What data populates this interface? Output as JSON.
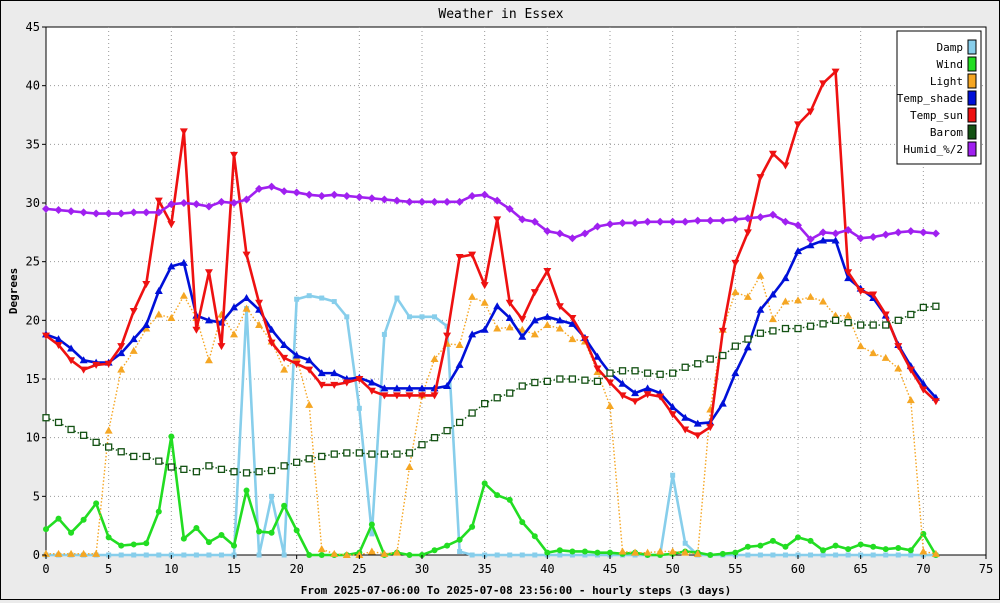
{
  "chart_data": {
    "type": "line",
    "title": "Weather in Essex",
    "xlabel": "From 2025-07-06:00 To 2025-07-08 23:56:00 - hourly steps (3 days)",
    "ylabel": "Degrees",
    "xlim": [
      0,
      75
    ],
    "ylim": [
      0,
      45
    ],
    "xticks": [
      0,
      5,
      10,
      15,
      20,
      25,
      30,
      35,
      40,
      45,
      50,
      55,
      60,
      65,
      70,
      75
    ],
    "yticks": [
      0,
      5,
      10,
      15,
      20,
      25,
      30,
      35,
      40,
      45
    ],
    "grid": true,
    "legend_position": "top-right",
    "x": [
      0,
      1,
      2,
      3,
      4,
      5,
      6,
      7,
      8,
      9,
      10,
      11,
      12,
      13,
      14,
      15,
      16,
      17,
      18,
      19,
      20,
      21,
      22,
      23,
      24,
      25,
      26,
      27,
      28,
      29,
      30,
      31,
      32,
      33,
      34,
      35,
      36,
      37,
      38,
      39,
      40,
      41,
      42,
      43,
      44,
      45,
      46,
      47,
      48,
      49,
      50,
      51,
      52,
      53,
      54,
      55,
      56,
      57,
      58,
      59,
      60,
      61,
      62,
      63,
      64,
      65,
      66,
      67,
      68,
      69,
      70,
      71
    ],
    "series": [
      {
        "name": "Damp",
        "color": "#87ceeb",
        "marker": "square",
        "line": "solid",
        "values": [
          0,
          0,
          0,
          0,
          0,
          0,
          0,
          0,
          0,
          0,
          0,
          0,
          0,
          0,
          0,
          0,
          21,
          0,
          5,
          0,
          21.8,
          22.1,
          21.9,
          21.6,
          20.3,
          12.5,
          1.8,
          18.8,
          21.9,
          20.3,
          20.3,
          20.3,
          19.5,
          0.3,
          0,
          0,
          0,
          0,
          0,
          0,
          0,
          0,
          0,
          0,
          0,
          0,
          0,
          0,
          0,
          0,
          6.8,
          1,
          0,
          0,
          0,
          0,
          0,
          0,
          0,
          0,
          0,
          0,
          0,
          0,
          0,
          0,
          0,
          0,
          0,
          0,
          0,
          0
        ]
      },
      {
        "name": "Wind",
        "color": "#22dd22",
        "marker": "circle",
        "line": "solid",
        "values": [
          2.2,
          3.1,
          1.9,
          3,
          4.4,
          1.5,
          0.8,
          0.9,
          1,
          3.7,
          10.1,
          1.4,
          2.3,
          1.1,
          1.7,
          0.8,
          5.5,
          2,
          1.9,
          4.2,
          2.1,
          0,
          0,
          0,
          0,
          0.2,
          2.6,
          0,
          0.2,
          0,
          0,
          0.4,
          0.8,
          1.3,
          2.4,
          6.1,
          5.1,
          4.7,
          2.8,
          1.6,
          0.2,
          0.4,
          0.3,
          0.3,
          0.2,
          0.2,
          0.1,
          0.2,
          0,
          0,
          0.1,
          0.3,
          0.2,
          0,
          0.1,
          0.2,
          0.7,
          0.8,
          1.2,
          0.7,
          1.5,
          1.2,
          0.4,
          0.8,
          0.5,
          0.9,
          0.7,
          0.5,
          0.6,
          0.4,
          1.8,
          0
        ]
      },
      {
        "name": "Light",
        "color": "#f5a623",
        "marker": "triangle",
        "line": "dotted",
        "values": [
          0.1,
          0.1,
          0.1,
          0.1,
          0.1,
          10.6,
          15.8,
          17.4,
          19.3,
          20.5,
          20.2,
          22.1,
          20.2,
          16.6,
          20.5,
          18.8,
          21.0,
          19.6,
          18.2,
          15.8,
          16.8,
          12.8,
          0.5,
          0.1,
          0,
          0,
          0.3,
          0.1,
          0.2,
          7.5,
          13.6,
          16.7,
          18,
          17.9,
          22,
          21.5,
          19.3,
          19.4,
          19.2,
          18.8,
          19.6,
          19.3,
          18.4,
          18.2,
          15.6,
          12.7,
          0.3,
          0.2,
          0.2,
          0.3,
          0.3,
          0.2,
          0.1,
          12.4,
          19.2,
          22.4,
          22,
          23.8,
          20.1,
          21.6,
          21.7,
          22,
          21.6,
          20.4,
          20.4,
          17.8,
          17.2,
          16.8,
          15.9,
          13.2,
          0.3,
          0.1
        ]
      },
      {
        "name": "Temp_shade",
        "color": "#0010d8",
        "marker": "triangle",
        "line": "solid",
        "values": [
          18.8,
          18.4,
          17.6,
          16.6,
          16.4,
          16.4,
          17.2,
          18.4,
          19.6,
          22.5,
          24.6,
          24.9,
          20.4,
          20.0,
          19.8,
          21.1,
          21.9,
          20.9,
          19.2,
          17.9,
          17.0,
          16.6,
          15.5,
          15.5,
          15.0,
          15.1,
          14.7,
          14.2,
          14.2,
          14.2,
          14.2,
          14.2,
          14.4,
          16.2,
          18.8,
          19.2,
          21.2,
          20.2,
          18.6,
          20.0,
          20.3,
          20.0,
          19.7,
          18.5,
          16.9,
          15.5,
          14.6,
          13.8,
          14.2,
          13.8,
          12.6,
          11.7,
          11.2,
          11.3,
          12.9,
          15.5,
          17.7,
          20.9,
          22.2,
          23.6,
          25.9,
          26.4,
          26.8,
          26.8,
          23.6,
          22.7,
          21.9,
          20.4,
          17.9,
          16.1,
          14.6,
          13.4
        ]
      },
      {
        "name": "Temp_sun",
        "color": "#ee1111",
        "marker": "triangle-down",
        "line": "solid",
        "values": [
          18.7,
          17.9,
          16.6,
          15.8,
          16.2,
          16.3,
          17.8,
          20.8,
          23.1,
          30.2,
          28.2,
          36.1,
          19.2,
          24.1,
          17.8,
          34.1,
          25.6,
          21.5,
          18.1,
          16.8,
          16.3,
          15.8,
          14.5,
          14.5,
          14.7,
          15.0,
          14.0,
          13.6,
          13.6,
          13.6,
          13.6,
          13.6,
          18.7,
          25.4,
          25.6,
          23.0,
          28.6,
          21.5,
          20.1,
          22.4,
          24.2,
          21.2,
          20.2,
          18.4,
          15.9,
          14.7,
          13.6,
          13.1,
          13.7,
          13.5,
          12.0,
          10.7,
          10.2,
          10.9,
          19.1,
          24.9,
          27.5,
          32.2,
          34.2,
          33.2,
          36.7,
          37.8,
          40.2,
          41.2,
          24.1,
          22.5,
          22.2,
          20.5,
          17.8,
          15.8,
          14.1,
          13.1
        ]
      },
      {
        "name": "Barom",
        "color": "#145214",
        "marker": "hollow-square",
        "line": "dotted",
        "values": [
          11.7,
          11.3,
          10.7,
          10.2,
          9.6,
          9.2,
          8.8,
          8.4,
          8.4,
          8.0,
          7.5,
          7.3,
          7.1,
          7.6,
          7.3,
          7.1,
          7.0,
          7.1,
          7.2,
          7.6,
          7.9,
          8.2,
          8.4,
          8.6,
          8.7,
          8.7,
          8.6,
          8.6,
          8.6,
          8.7,
          9.4,
          10.0,
          10.6,
          11.3,
          12.1,
          12.9,
          13.4,
          13.8,
          14.4,
          14.7,
          14.8,
          15.0,
          15.0,
          14.9,
          14.8,
          15.5,
          15.7,
          15.7,
          15.5,
          15.4,
          15.5,
          16.0,
          16.3,
          16.7,
          17.0,
          17.8,
          18.4,
          18.9,
          19.1,
          19.3,
          19.3,
          19.5,
          19.7,
          20.0,
          19.8,
          19.6,
          19.6,
          19.6,
          20.0,
          20.5,
          21.1,
          21.2
        ]
      },
      {
        "name": "Humid_%/2",
        "color": "#a020f0",
        "marker": "diamond",
        "line": "solid",
        "values": [
          29.5,
          29.4,
          29.3,
          29.2,
          29.1,
          29.1,
          29.1,
          29.2,
          29.2,
          29.2,
          29.9,
          30.0,
          29.9,
          29.7,
          30.1,
          30.0,
          30.3,
          31.2,
          31.4,
          31.0,
          30.9,
          30.7,
          30.6,
          30.7,
          30.6,
          30.5,
          30.4,
          30.3,
          30.2,
          30.1,
          30.1,
          30.1,
          30.1,
          30.1,
          30.6,
          30.7,
          30.2,
          29.5,
          28.6,
          28.4,
          27.6,
          27.4,
          27.0,
          27.4,
          28.0,
          28.2,
          28.3,
          28.3,
          28.4,
          28.4,
          28.4,
          28.4,
          28.5,
          28.5,
          28.5,
          28.6,
          28.7,
          28.8,
          29.0,
          28.4,
          28.1,
          26.9,
          27.5,
          27.4,
          27.7,
          27.0,
          27.1,
          27.3,
          27.5,
          27.6,
          27.5,
          27.4
        ]
      }
    ]
  }
}
